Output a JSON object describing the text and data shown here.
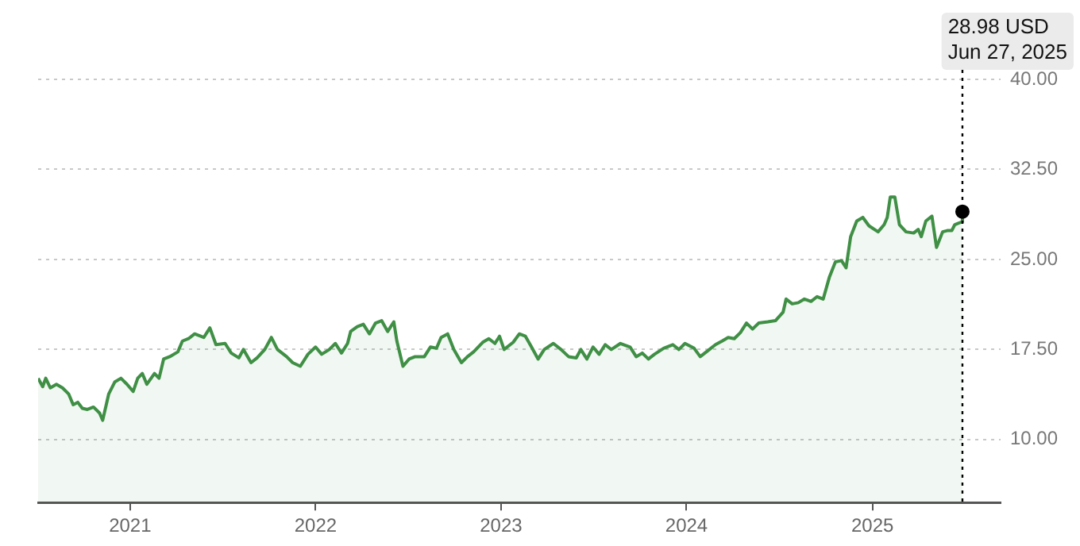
{
  "chart_data": {
    "type": "area",
    "x": [
      "2020-07-04",
      "2020-07-13",
      "2020-07-19",
      "2020-07-28",
      "2020-08-09",
      "2020-08-21",
      "2020-09-02",
      "2020-09-11",
      "2020-09-20",
      "2020-09-29",
      "2020-10-09",
      "2020-10-21",
      "2020-11-02",
      "2020-11-08",
      "2020-11-20",
      "2020-12-02",
      "2020-12-14",
      "2020-12-26",
      "2021-01-07",
      "2021-01-16",
      "2021-01-25",
      "2021-02-03",
      "2021-02-18",
      "2021-02-27",
      "2021-03-08",
      "2021-03-20",
      "2021-04-05",
      "2021-04-14",
      "2021-04-26",
      "2021-05-08",
      "2021-05-26",
      "2021-06-07",
      "2021-06-19",
      "2021-07-07",
      "2021-07-19",
      "2021-08-03",
      "2021-08-12",
      "2021-08-27",
      "2021-09-08",
      "2021-09-23",
      "2021-10-06",
      "2021-10-18",
      "2021-11-05",
      "2021-11-17",
      "2021-12-02",
      "2021-12-17",
      "2022-01-01",
      "2022-01-13",
      "2022-01-28",
      "2022-02-09",
      "2022-02-21",
      "2022-03-05",
      "2022-03-11",
      "2022-03-24",
      "2022-04-05",
      "2022-04-17",
      "2022-04-29",
      "2022-05-11",
      "2022-05-23",
      "2022-06-04",
      "2022-06-10",
      "2022-06-22",
      "2022-07-04",
      "2022-07-16",
      "2022-08-03",
      "2022-08-15",
      "2022-08-27",
      "2022-09-05",
      "2022-09-18",
      "2022-09-30",
      "2022-10-15",
      "2022-10-27",
      "2022-11-08",
      "2022-11-26",
      "2022-12-08",
      "2022-12-20",
      "2022-12-29",
      "2023-01-07",
      "2023-01-25",
      "2023-02-06",
      "2023-02-18",
      "2023-03-02",
      "2023-03-15",
      "2023-03-27",
      "2023-04-14",
      "2023-04-29",
      "2023-05-14",
      "2023-05-29",
      "2023-06-07",
      "2023-06-19",
      "2023-07-01",
      "2023-07-13",
      "2023-07-25",
      "2023-08-06",
      "2023-08-24",
      "2023-09-12",
      "2023-09-24",
      "2023-10-06",
      "2023-10-18",
      "2023-10-30",
      "2023-11-17",
      "2023-12-05",
      "2023-12-17",
      "2023-12-29",
      "2024-01-16",
      "2024-01-28",
      "2024-02-15",
      "2024-02-27",
      "2024-03-11",
      "2024-03-23",
      "2024-04-04",
      "2024-04-16",
      "2024-04-28",
      "2024-05-10",
      "2024-05-22",
      "2024-06-09",
      "2024-06-24",
      "2024-07-09",
      "2024-07-15",
      "2024-07-27",
      "2024-08-08",
      "2024-08-20",
      "2024-09-02",
      "2024-09-14",
      "2024-09-26",
      "2024-10-08",
      "2024-10-20",
      "2024-11-01",
      "2024-11-10",
      "2024-11-19",
      "2024-12-01",
      "2024-12-13",
      "2024-12-25",
      "2025-01-12",
      "2025-01-24",
      "2025-01-30",
      "2025-02-05",
      "2025-02-14",
      "2025-02-23",
      "2025-03-08",
      "2025-03-23",
      "2025-04-01",
      "2025-04-07",
      "2025-04-16",
      "2025-04-28",
      "2025-05-07",
      "2025-05-19",
      "2025-05-28",
      "2025-06-06",
      "2025-06-12",
      "2025-06-24",
      "2025-06-27"
    ],
    "series": [
      {
        "color": "#3f8f45",
        "values": [
          15.1,
          14.4,
          15.1,
          14.3,
          14.6,
          14.3,
          13.8,
          12.9,
          13.1,
          12.6,
          12.5,
          12.7,
          12.2,
          11.6,
          13.8,
          14.8,
          15.1,
          14.6,
          14.0,
          15.1,
          15.5,
          14.6,
          15.5,
          15.1,
          16.7,
          16.9,
          17.3,
          18.2,
          18.4,
          18.8,
          18.5,
          19.3,
          17.9,
          18.0,
          17.2,
          16.8,
          17.5,
          16.4,
          16.8,
          17.5,
          18.5,
          17.5,
          16.9,
          16.4,
          16.1,
          17.1,
          17.7,
          17.1,
          17.5,
          18.0,
          17.2,
          18.0,
          19.0,
          19.4,
          19.6,
          18.8,
          19.7,
          19.9,
          19.0,
          19.8,
          18.2,
          16.1,
          16.7,
          16.9,
          16.9,
          17.7,
          17.6,
          18.5,
          18.8,
          17.5,
          16.4,
          16.9,
          17.3,
          18.1,
          18.4,
          18.0,
          18.6,
          17.5,
          18.1,
          18.8,
          18.6,
          17.7,
          16.7,
          17.5,
          18.0,
          17.5,
          16.9,
          16.8,
          17.5,
          16.7,
          17.7,
          17.1,
          17.9,
          17.5,
          18.0,
          17.7,
          16.9,
          17.2,
          16.7,
          17.1,
          17.6,
          17.9,
          17.5,
          18.0,
          17.6,
          16.9,
          17.5,
          17.9,
          18.2,
          18.5,
          18.4,
          18.9,
          19.7,
          19.2,
          19.7,
          19.8,
          19.9,
          20.6,
          21.7,
          21.3,
          21.4,
          21.7,
          21.5,
          21.9,
          21.7,
          23.5,
          24.8,
          24.9,
          24.3,
          26.9,
          28.2,
          28.5,
          27.8,
          27.3,
          27.9,
          28.5,
          30.2,
          30.2,
          27.9,
          27.3,
          27.2,
          27.5,
          26.9,
          28.2,
          28.6,
          26.0,
          27.3,
          27.4,
          27.4,
          27.9,
          28.1,
          28.98
        ]
      },
      {
        "type": "scatter",
        "color": "#000000",
        "marker": "circle",
        "x": [
          "2025-06-27"
        ],
        "values": [
          28.98
        ]
      }
    ],
    "xlim": [
      "2020-07-04",
      "2025-09-10"
    ],
    "xticks": [
      {
        "value": "2021-01-01",
        "label": "2021"
      },
      {
        "value": "2022-01-01",
        "label": "2022"
      },
      {
        "value": "2023-01-01",
        "label": "2023"
      },
      {
        "value": "2024-01-01",
        "label": "2024"
      },
      {
        "value": "2025-01-01",
        "label": "2025"
      }
    ],
    "ylim": [
      4.75,
      40
    ],
    "yticks": [
      {
        "value": 10,
        "label": "10.00"
      },
      {
        "value": 17.5,
        "label": "17.50"
      },
      {
        "value": 25,
        "label": "25.00"
      },
      {
        "value": 32.5,
        "label": "32.50"
      },
      {
        "value": 40,
        "label": "40.00"
      }
    ],
    "grid": "y",
    "marker": "none",
    "line_style": "solid",
    "ref_lines": [
      {
        "axis": "x",
        "value": "2025-06-27",
        "color": "#000000",
        "line_style": "dotted"
      }
    ],
    "annotations": [
      "28.98 USD",
      "Jun 27, 2025"
    ]
  }
}
